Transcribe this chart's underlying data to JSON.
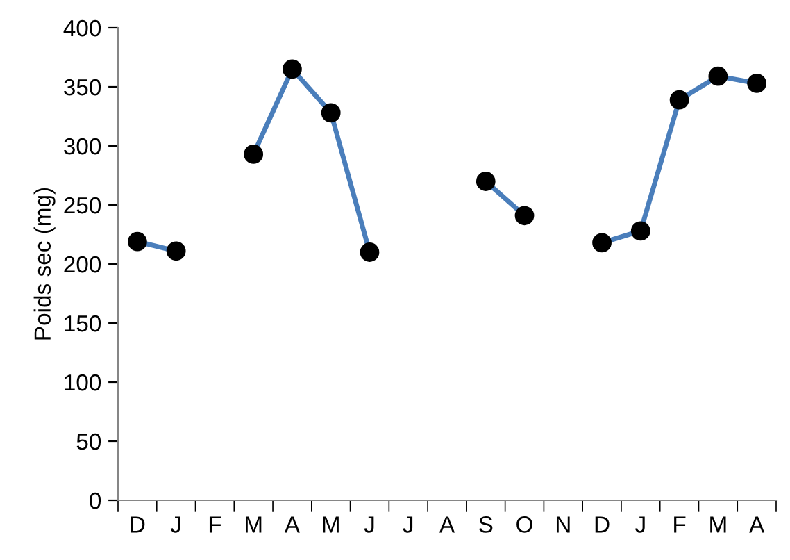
{
  "chart_data": {
    "type": "line",
    "ylabel": "Poids sec (mg)",
    "categories": [
      "D",
      "J",
      "F",
      "M",
      "A",
      "M",
      "J",
      "J",
      "A",
      "S",
      "O",
      "N",
      "D",
      "J",
      "F",
      "M",
      "A"
    ],
    "series": [
      {
        "color": "#4a7ebb",
        "values": [
          219,
          211,
          null,
          293,
          365,
          328,
          210,
          null,
          null,
          270,
          241,
          null,
          218,
          228,
          339,
          359,
          353
        ]
      }
    ],
    "ylim": [
      0,
      400
    ],
    "yticks": [
      0,
      50,
      100,
      150,
      200,
      250,
      300,
      350,
      400
    ],
    "grid": false,
    "marker": "circle",
    "line_style": "solid"
  }
}
